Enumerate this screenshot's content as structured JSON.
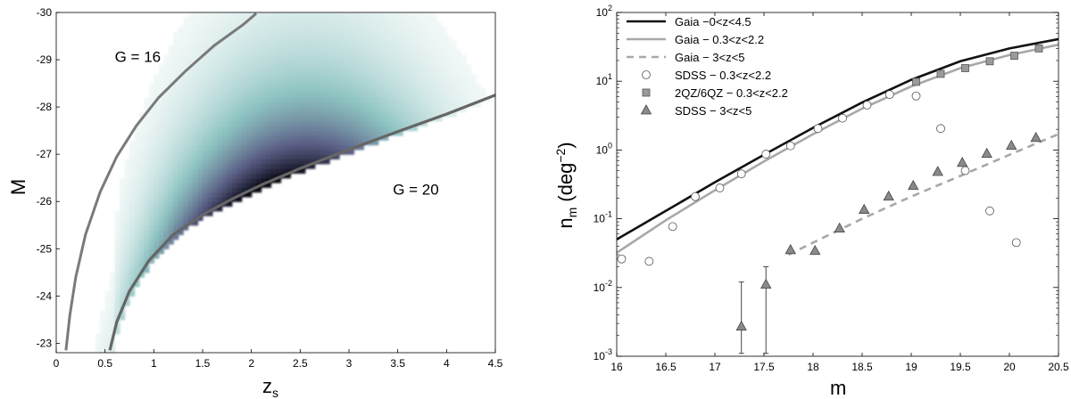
{
  "chart_data": [
    {
      "type": "heatmap",
      "xlabel": "z",
      "xlabel_sub": "s",
      "ylabel": "M",
      "xlim": [
        0,
        4.5
      ],
      "ylim": [
        -22.8,
        -30
      ],
      "x_ticks": [
        0,
        0.5,
        1,
        1.5,
        2,
        2.5,
        3,
        3.5,
        4,
        4.5
      ],
      "x_tick_labels": [
        "0",
        "0.5",
        "1",
        "1.5",
        "2",
        "2.5",
        "3",
        "3.5",
        "4",
        "4.5"
      ],
      "y_ticks": [
        -23,
        -24,
        -25,
        -26,
        -27,
        -28,
        -29,
        -30
      ],
      "y_tick_labels": [
        "-23",
        "-24",
        "-25",
        "-26",
        "-27",
        "-28",
        "-29",
        "-30"
      ],
      "colormap": [
        "#ffffff",
        "#8ec4c2",
        "#5b5f86",
        "#0b0b18"
      ],
      "density_peak": {
        "z": 2.15,
        "M": -26.6
      },
      "curves": [
        {
          "label": "G = 16",
          "label_at": {
            "z": 0.6,
            "M": -28.95
          },
          "color": "#7a7a7a",
          "points": [
            [
              0.1,
              -22.85
            ],
            [
              0.14,
              -23.6
            ],
            [
              0.2,
              -24.4
            ],
            [
              0.3,
              -25.3
            ],
            [
              0.45,
              -26.2
            ],
            [
              0.62,
              -26.95
            ],
            [
              0.82,
              -27.6
            ],
            [
              1.05,
              -28.2
            ],
            [
              1.32,
              -28.75
            ],
            [
              1.62,
              -29.3
            ],
            [
              1.92,
              -29.75
            ],
            [
              2.05,
              -29.98
            ]
          ]
        },
        {
          "label": "G = 20",
          "label_at": {
            "z": 3.45,
            "M": -26.15
          },
          "color": "#666666",
          "points": [
            [
              0.55,
              -22.85
            ],
            [
              0.62,
              -23.45
            ],
            [
              0.75,
              -24.1
            ],
            [
              0.95,
              -24.75
            ],
            [
              1.2,
              -25.3
            ],
            [
              1.5,
              -25.72
            ],
            [
              1.8,
              -26.05
            ],
            [
              2.1,
              -26.35
            ],
            [
              2.5,
              -26.7
            ],
            [
              3.0,
              -27.1
            ],
            [
              3.5,
              -27.48
            ],
            [
              4.0,
              -27.85
            ],
            [
              4.5,
              -28.25
            ]
          ]
        }
      ]
    },
    {
      "type": "line",
      "xlabel": "m",
      "ylabel": "n",
      "ylabel_sub": "m",
      "ylabel_unit": "(deg",
      "ylabel_exp": "−2",
      "ylabel_close": ")",
      "xlim": [
        16,
        20.5
      ],
      "ylim": [
        0.001,
        100
      ],
      "yscale": "log",
      "x_ticks": [
        16,
        16.5,
        17,
        17.5,
        18,
        18.5,
        19,
        19.5,
        20,
        20.5
      ],
      "x_tick_labels": [
        "16",
        "16.5",
        "17",
        "17.5",
        "18",
        "18.5",
        "19",
        "19.5",
        "20",
        "20.5"
      ],
      "y_ticks": [
        0.001,
        0.01,
        0.1,
        1,
        10,
        100
      ],
      "y_tick_base": [
        "10",
        "10",
        "10",
        "10",
        "10",
        "10"
      ],
      "y_tick_exp": [
        "-3",
        "-2",
        "-1",
        "0",
        "1",
        "2"
      ],
      "legend_position": "top-left",
      "series": [
        {
          "name": "Gaia −0<z<4.5",
          "style": "solid-black",
          "x": [
            16,
            16.5,
            17,
            17.5,
            18,
            18.5,
            19,
            19.5,
            20,
            20.5
          ],
          "y": [
            0.05,
            0.13,
            0.34,
            0.85,
            2.1,
            4.9,
            10.5,
            19.5,
            30,
            41
          ]
        },
        {
          "name": "Gaia − 0.3<z<2.2",
          "style": "solid-gray",
          "x": [
            16,
            16.5,
            17,
            17.5,
            18,
            18.5,
            19,
            19.5,
            20,
            20.5
          ],
          "y": [
            0.032,
            0.095,
            0.26,
            0.68,
            1.7,
            4.0,
            8.4,
            15.5,
            24,
            34
          ]
        },
        {
          "name": "Gaia − 3<z<5",
          "style": "dashed-gray",
          "x": [
            17.75,
            18,
            18.5,
            19,
            19.5,
            20,
            20.5
          ],
          "y": [
            0.03,
            0.045,
            0.1,
            0.21,
            0.42,
            0.85,
            1.7
          ]
        },
        {
          "name": "SDSS − 0.3<z<2.2",
          "style": "open-circle",
          "x": [
            16.05,
            16.33,
            16.57,
            16.8,
            17.05,
            17.27,
            17.52,
            17.77,
            18.05,
            18.3,
            18.55,
            18.78,
            19.05,
            19.3,
            19.55,
            19.8,
            20.07
          ],
          "y": [
            0.026,
            0.024,
            0.077,
            0.21,
            0.28,
            0.45,
            0.87,
            1.15,
            2.05,
            2.9,
            4.5,
            6.4,
            6.1,
            2.05,
            0.5,
            0.13,
            0.045
          ]
        },
        {
          "name": "2QZ/6QZ − 0.3<z<2.2",
          "style": "gray-square",
          "x": [
            19.05,
            19.3,
            19.55,
            19.8,
            20.05,
            20.3
          ],
          "y": [
            9.8,
            12.8,
            15.5,
            19.5,
            23.5,
            30
          ]
        },
        {
          "name": "SDSS − 3<z<5",
          "style": "gray-triangle",
          "x": [
            17.27,
            17.52,
            17.77,
            18.02,
            18.27,
            18.52,
            18.77,
            19.02,
            19.27,
            19.52,
            19.77,
            20.02,
            20.27
          ],
          "y": [
            0.0027,
            0.011,
            0.035,
            0.034,
            0.072,
            0.135,
            0.21,
            0.3,
            0.48,
            0.65,
            0.88,
            1.15,
            1.5
          ],
          "err_low": [
            0.0011,
            0.0011,
            null,
            null,
            null,
            null,
            null,
            null,
            null,
            null,
            null,
            null,
            null
          ],
          "err_high": [
            0.012,
            0.02,
            null,
            null,
            null,
            null,
            null,
            null,
            null,
            null,
            null,
            null,
            null
          ]
        }
      ]
    }
  ],
  "annotations": {
    "g16": "G = 16",
    "g20": "G = 20"
  }
}
